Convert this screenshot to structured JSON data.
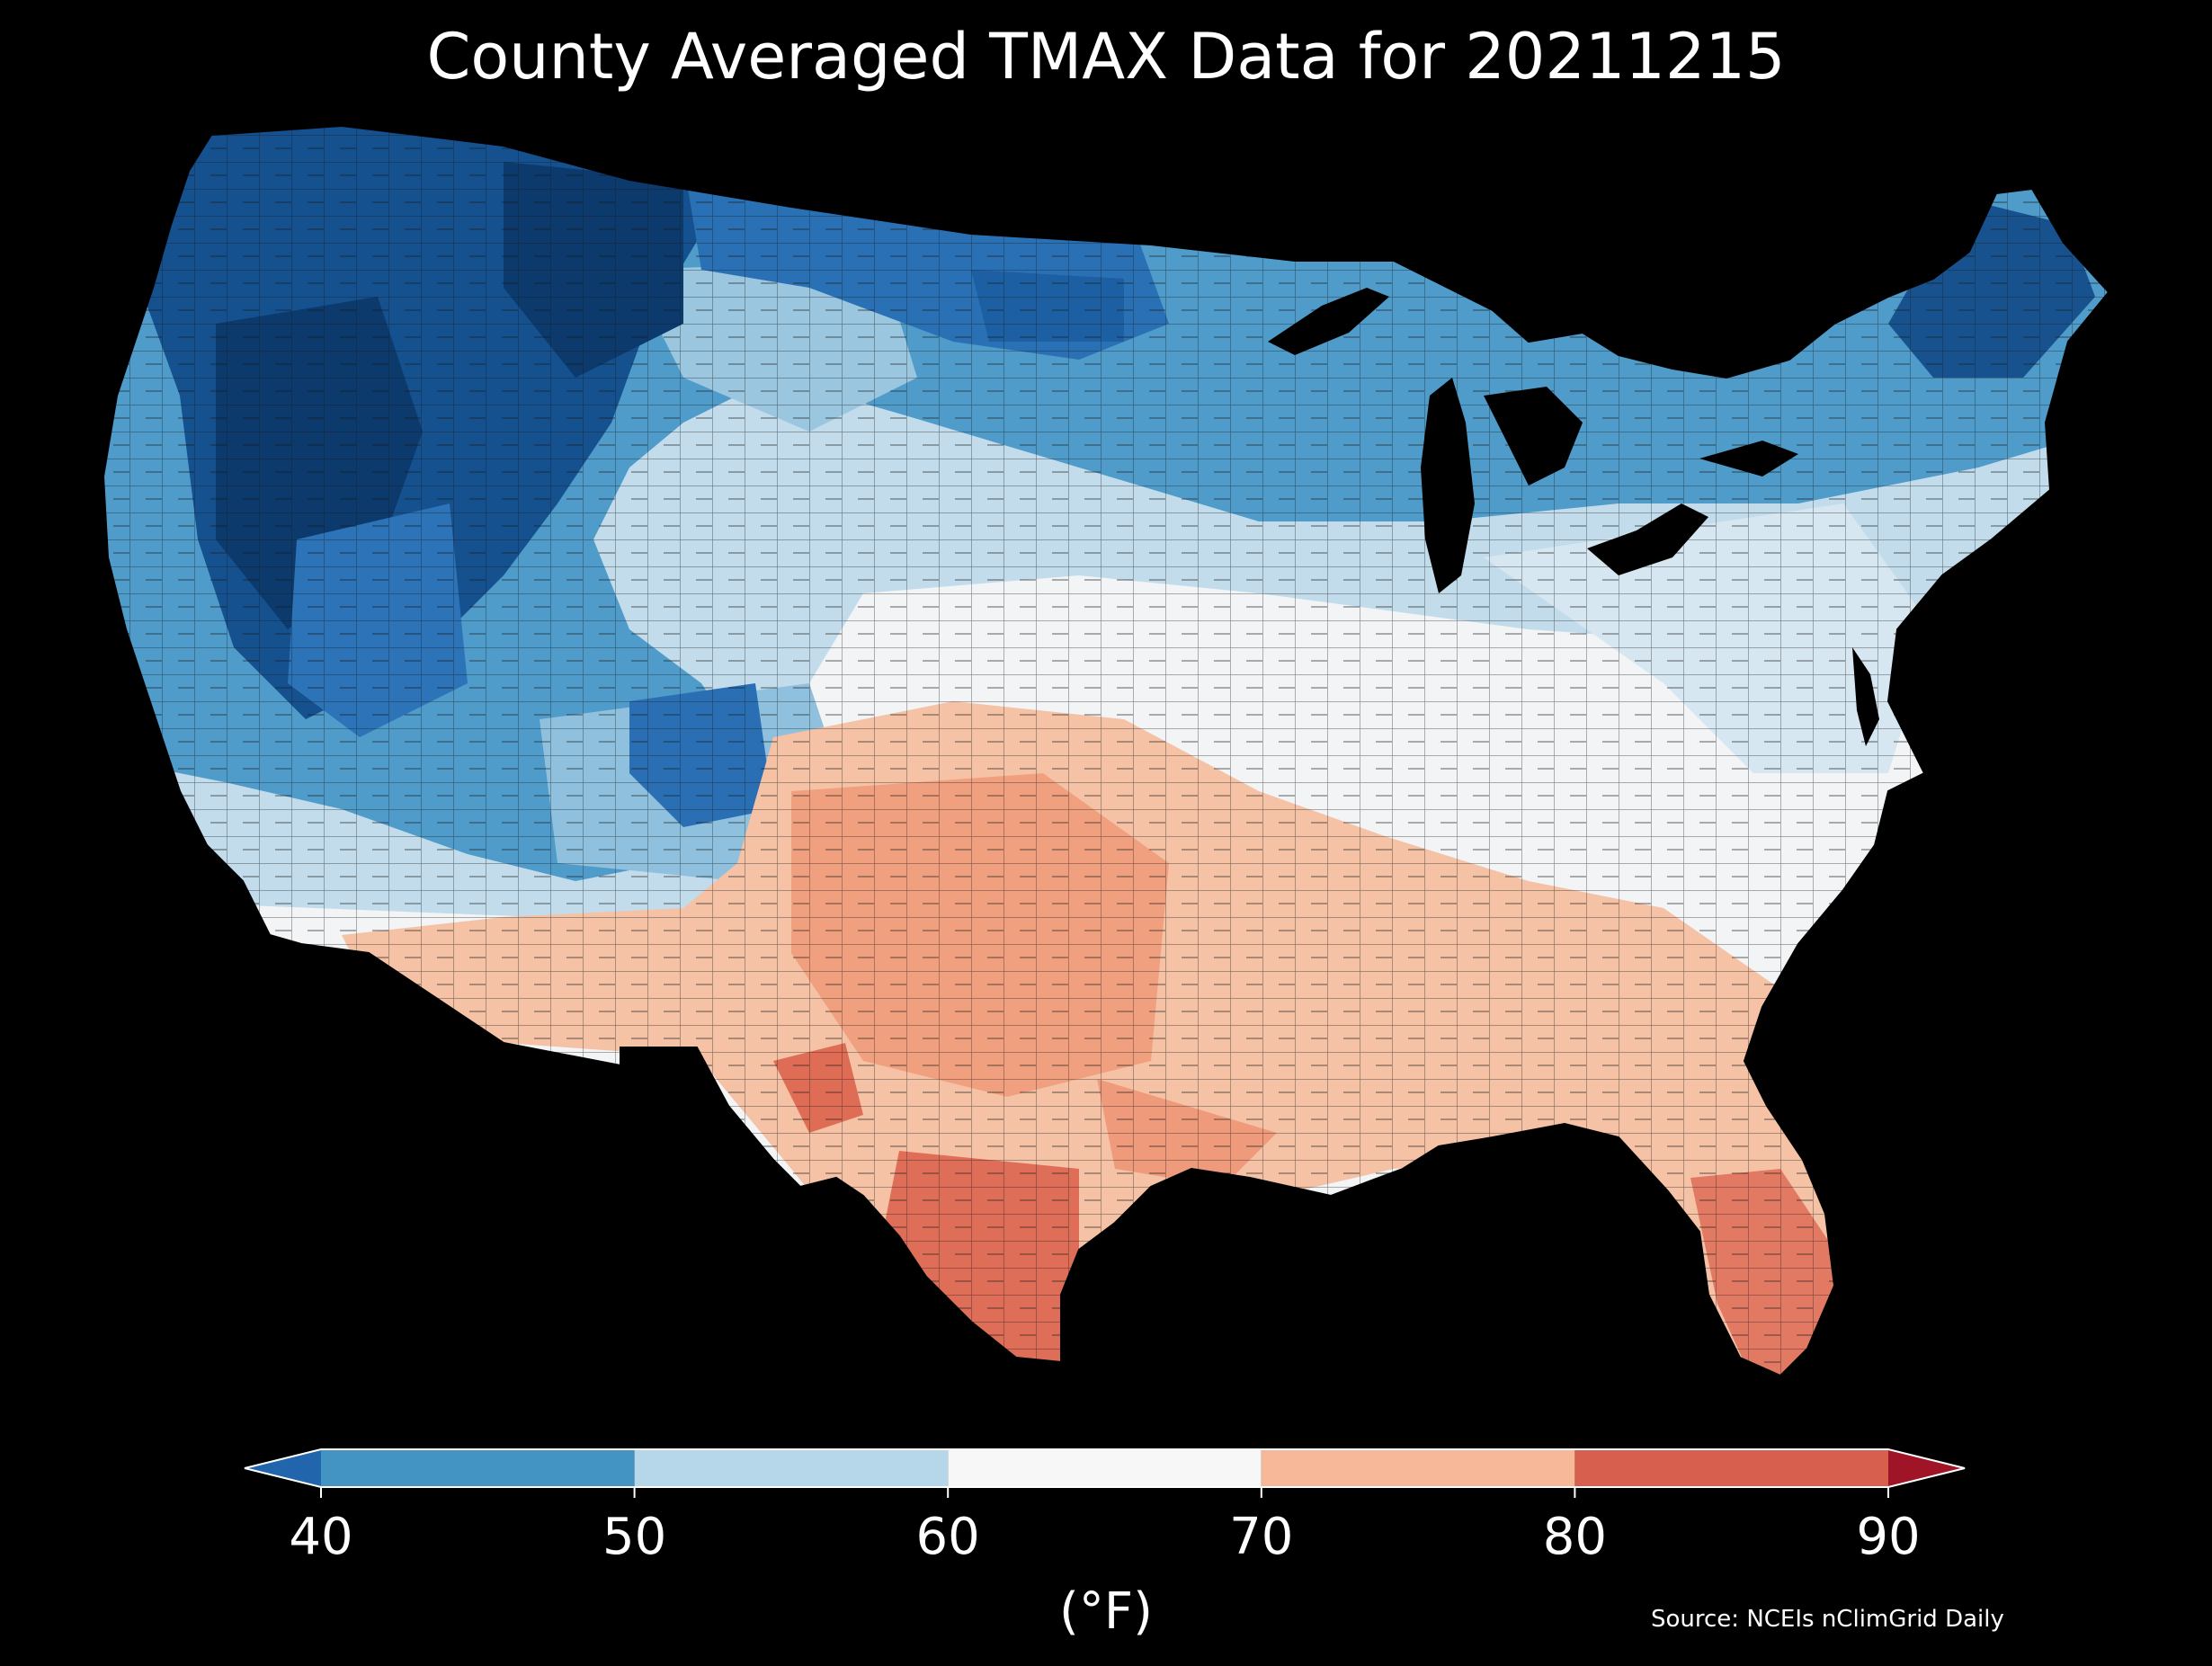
{
  "title": "County Averaged TMAX Data for 20211215",
  "source": "Source: NCEIs nClimGrid Daily",
  "colorbar": {
    "unit_label": "(°F)",
    "ticks": [
      "40",
      "50",
      "60",
      "70",
      "80",
      "90"
    ],
    "extend": "both",
    "bins": [
      {
        "from": null,
        "to": 40,
        "color": "#2166ac"
      },
      {
        "from": 40,
        "to": 50,
        "color": "#4393c3"
      },
      {
        "from": 50,
        "to": 60,
        "color": "#b6d7e9"
      },
      {
        "from": 60,
        "to": 70,
        "color": "#f7f7f7"
      },
      {
        "from": 70,
        "to": 80,
        "color": "#f7b899"
      },
      {
        "from": 80,
        "to": 90,
        "color": "#d6604d"
      },
      {
        "from": 90,
        "to": null,
        "color": "#a01427"
      }
    ]
  },
  "map": {
    "region": "Contiguous United States",
    "unit": "county",
    "background": "#000000",
    "pattern": "Coldest (<40°F) across the northern Rockies and northern Plains; 40–60°F across the West, Upper Midwest and Northeast; 60–70°F across the central Plains and Southeast; 70–80°F across Texas, Oklahoma and the Gulf Coast; 80–90°F in south Texas and south Florida"
  }
}
